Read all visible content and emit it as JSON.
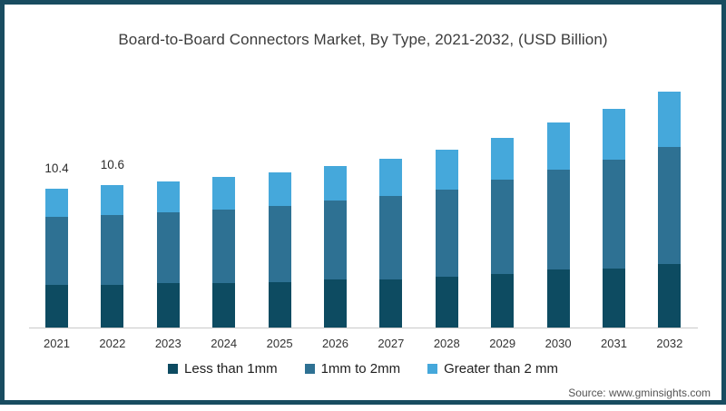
{
  "chart": {
    "title": "Board-to-Board Connectors Market, By Type, 2021-2032, (USD Billion)"
  },
  "source": {
    "text": "Source: www.gminsights.com"
  },
  "colors": {
    "frame_border": "#184c60",
    "axis_line": "#c9c9c9",
    "series_dark": "#0d4b61",
    "series_mid": "#2e7193",
    "series_light": "#45a8db"
  },
  "chart_data": {
    "type": "bar",
    "stacked": true,
    "title": "Board-to-Board Connectors Market, By Type, 2021-2032, (USD Billion)",
    "unit": "USD Billion",
    "grid": false,
    "legend_position": "bottom",
    "xlabel": "",
    "ylabel": "",
    "ylim": [
      0,
      18
    ],
    "categories": [
      "2021",
      "2022",
      "2023",
      "2024",
      "2025",
      "2026",
      "2027",
      "2028",
      "2029",
      "2030",
      "2031",
      "2032"
    ],
    "series": [
      {
        "name": "Less than 1mm",
        "color": "#0d4b61",
        "values": [
          3.2,
          3.2,
          3.3,
          3.3,
          3.4,
          3.6,
          3.6,
          3.8,
          4.0,
          4.3,
          4.4,
          4.7
        ]
      },
      {
        "name": "1mm to 2mm",
        "color": "#2e7193",
        "values": [
          5.1,
          5.2,
          5.3,
          5.5,
          5.7,
          5.9,
          6.2,
          6.5,
          7.0,
          7.4,
          8.1,
          8.7
        ]
      },
      {
        "name": "Greater than 2 mm",
        "color": "#45a8db",
        "values": [
          2.1,
          2.2,
          2.3,
          2.4,
          2.5,
          2.6,
          2.8,
          3.0,
          3.1,
          3.5,
          3.8,
          4.1
        ]
      }
    ],
    "totals": [
      10.4,
      10.6,
      10.9,
      11.2,
      11.6,
      12.1,
      12.6,
      13.3,
      14.1,
      15.2,
      16.3,
      17.5
    ],
    "point_labels": {
      "2021": "10.4",
      "2022": "10.6"
    }
  }
}
